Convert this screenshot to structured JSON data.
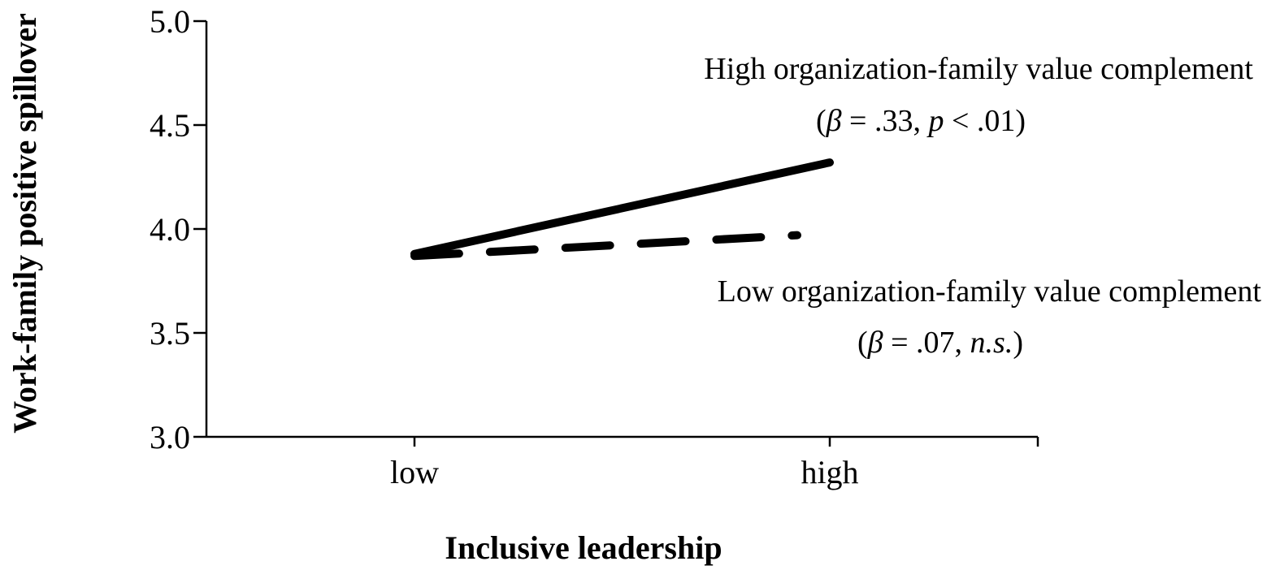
{
  "chart_data": {
    "type": "line",
    "title": "",
    "xlabel": "Inclusive leadership",
    "ylabel": "Work-family positive spillover",
    "categories": [
      "low",
      "high"
    ],
    "ylim": [
      3.0,
      5.0
    ],
    "yticks": [
      "3.0",
      "3.5",
      "4.0",
      "4.5",
      "5.0"
    ],
    "yticks_values": [
      3.0,
      3.5,
      4.0,
      4.5,
      5.0
    ],
    "grid": false,
    "legend": "none",
    "series": [
      {
        "values": [
          3.88,
          4.32
        ],
        "line_style": "solid",
        "color": "#000000"
      },
      {
        "values": [
          3.87,
          3.97
        ],
        "line_style": "dashed",
        "color": "#000000"
      }
    ],
    "annotations": [
      {
        "title": "High organization-family value complement",
        "stat": {
          "open": "(",
          "beta_symbol": "β",
          "eq": " = .33, ",
          "p_symbol": "p",
          "rest": " < .01)"
        }
      },
      {
        "title": "Low organization-family value complement",
        "stat": {
          "open": "(",
          "beta_symbol": "β",
          "eq": " = .07, ",
          "ns": "n.s.",
          "close": ")"
        }
      }
    ]
  }
}
